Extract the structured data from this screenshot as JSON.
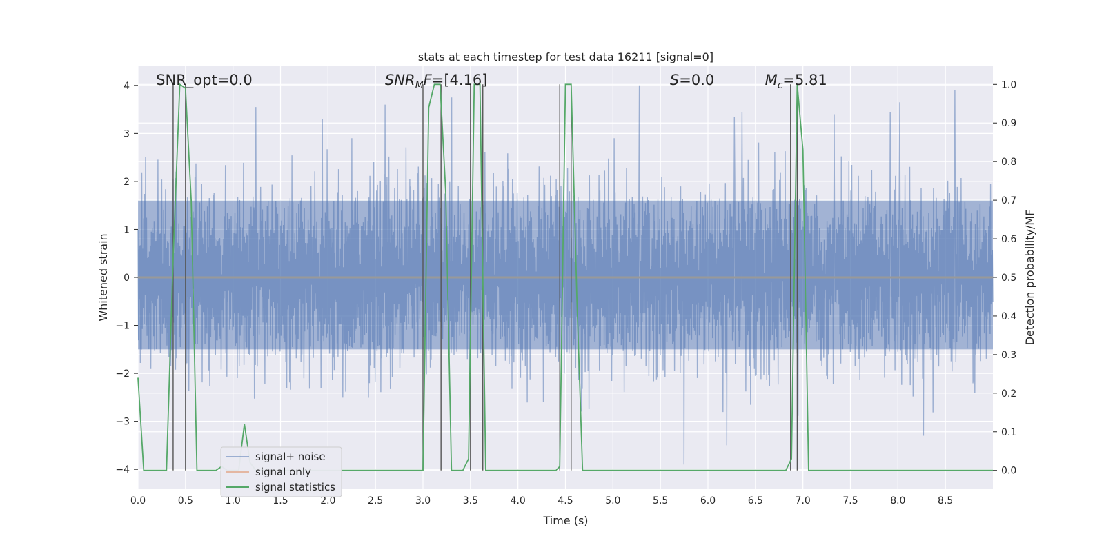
{
  "chart_data": {
    "type": "line",
    "title": "stats at each timestep for test data 16211 [signal=0]",
    "xlabel": "Time (s)",
    "ylabel": "Whitened strain",
    "y2label": "Detection probability/MF",
    "xlim": [
      0,
      9.0
    ],
    "ylim": [
      -4.4,
      4.4
    ],
    "y2lim": [
      -0.047,
      1.047
    ],
    "xticks": [
      "0.0",
      "0.5",
      "1.0",
      "1.5",
      "2.0",
      "2.5",
      "3.0",
      "3.5",
      "4.0",
      "4.5",
      "5.0",
      "5.5",
      "6.0",
      "6.5",
      "7.0",
      "7.5",
      "8.0",
      "8.5"
    ],
    "yticks": [
      "−4",
      "−3",
      "−2",
      "−1",
      "0",
      "1",
      "2",
      "3",
      "4"
    ],
    "y2ticks": [
      "0.0",
      "0.1",
      "0.2",
      "0.3",
      "0.4",
      "0.5",
      "0.6",
      "0.7",
      "0.8",
      "0.9",
      "1.0"
    ],
    "grid": true,
    "legend_position": "lower-left",
    "colors": {
      "background": "#eaeaf2",
      "signal_noise": "#4c72b0",
      "signal_only": "#dd8452",
      "signal_statistics": "#55a868",
      "vertical_lines": "#555555"
    },
    "annotations": [
      {
        "text": "SNR_opt=0.0",
        "x": 0.19
      },
      {
        "text": "SNR",
        "sub": "M",
        "after": "F=[4.16]",
        "italic": true,
        "x": 2.6
      },
      {
        "text": "S",
        "after": "=0.0",
        "italic": true,
        "x": 5.6
      },
      {
        "text": "M",
        "sub": "c",
        "after": "=5.81",
        "italic": true,
        "x": 6.6
      }
    ],
    "series": [
      {
        "name": "signal+ noise",
        "kind": "noise",
        "x_range": [
          0,
          9.0
        ],
        "typical_range": [
          -1.5,
          1.6
        ],
        "peaks": [
          [
            1.24,
            3.55
          ],
          [
            1.94,
            3.3
          ],
          [
            2.6,
            3.6
          ],
          [
            3.3,
            3.75
          ],
          [
            5.28,
            4.0
          ],
          [
            5.75,
            -3.9
          ],
          [
            6.2,
            -3.5
          ],
          [
            6.28,
            3.35
          ],
          [
            6.36,
            3.45
          ],
          [
            7.33,
            3.4
          ],
          [
            7.92,
            3.45
          ],
          [
            8.02,
            3.65
          ],
          [
            8.27,
            -3.3
          ],
          [
            8.6,
            3.9
          ]
        ]
      },
      {
        "name": "signal only",
        "kind": "line",
        "x": [
          0,
          9.0
        ],
        "y": [
          0,
          0
        ]
      },
      {
        "name": "signal statistics",
        "kind": "line",
        "axis": "right",
        "x": [
          0.0,
          0.06,
          0.12,
          0.3,
          0.37,
          0.44,
          0.5,
          0.56,
          0.62,
          0.82,
          0.88,
          0.94,
          1.0,
          1.06,
          1.12,
          1.18,
          1.24,
          3.0,
          3.06,
          3.12,
          3.18,
          3.24,
          3.3,
          3.36,
          3.42,
          3.48,
          3.54,
          3.6,
          3.66,
          3.72,
          4.4,
          4.44,
          4.5,
          4.56,
          4.62,
          4.68,
          6.82,
          6.88,
          6.94,
          7.0,
          7.06,
          9.0
        ],
        "y": [
          0.24,
          0.0,
          0.0,
          0.0,
          0.55,
          1.0,
          0.99,
          0.7,
          0.0,
          0.0,
          0.01,
          0.0,
          0.0,
          0.0,
          0.12,
          0.02,
          0.0,
          0.0,
          0.94,
          1.0,
          1.0,
          0.72,
          0.0,
          0.0,
          0.0,
          0.03,
          1.0,
          1.0,
          0.0,
          0.0,
          0.0,
          0.01,
          1.0,
          1.0,
          0.45,
          0.0,
          0.0,
          0.03,
          1.0,
          0.83,
          0.0,
          0.0
        ]
      }
    ],
    "vlines": [
      0.37,
      0.5,
      3.0,
      3.19,
      3.5,
      3.63,
      4.44,
      4.56,
      6.87,
      6.94
    ]
  }
}
